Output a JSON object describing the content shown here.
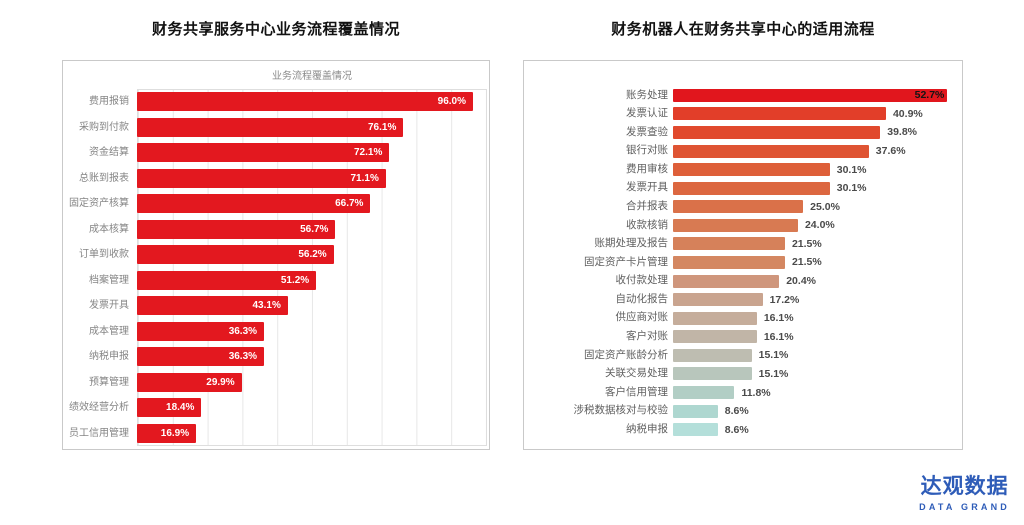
{
  "page": {
    "background": "#ffffff"
  },
  "logo": {
    "name_cn": "达观数据",
    "name_en": "DATA GRAND",
    "color": "#2e5cb8"
  },
  "chart_data": [
    {
      "type": "bar",
      "orientation": "horizontal",
      "title": "财务共享服务中心业务流程覆盖情况",
      "inner_title": "业务流程覆盖情况",
      "categories": [
        "费用报销",
        "采购到付款",
        "资金结算",
        "总账到报表",
        "固定资产核算",
        "成本核算",
        "订单到收款",
        "档案管理",
        "发票开具",
        "成本管理",
        "纳税申报",
        "预算管理",
        "绩效经营分析",
        "员工信用管理"
      ],
      "values": [
        96.0,
        76.1,
        72.1,
        71.1,
        66.7,
        56.7,
        56.2,
        51.2,
        43.1,
        36.3,
        36.3,
        29.9,
        18.4,
        16.9
      ],
      "value_labels": [
        "96.0%",
        "76.1%",
        "72.1%",
        "71.1%",
        "66.7%",
        "56.7%",
        "56.2%",
        "51.2%",
        "43.1%",
        "36.3%",
        "36.3%",
        "29.9%",
        "18.4%",
        "16.9%"
      ],
      "bar_color": "#e3181f",
      "value_label_position": "inside",
      "xlim": [
        0,
        100
      ],
      "grid": true,
      "grid_step_percent": 10
    },
    {
      "type": "bar",
      "orientation": "horizontal",
      "title": "财务机器人在财务共享中心的适用流程",
      "categories": [
        "账务处理",
        "发票认证",
        "发票查验",
        "银行对账",
        "费用审核",
        "发票开具",
        "合并报表",
        "收款核销",
        "账期处理及报告",
        "固定资产卡片管理",
        "收付款处理",
        "自动化报告",
        "供应商对账",
        "客户对账",
        "固定资产账龄分析",
        "关联交易处理",
        "客户信用管理",
        "涉税数据核对与校验",
        "纳税申报"
      ],
      "values": [
        52.7,
        40.9,
        39.8,
        37.6,
        30.1,
        30.1,
        25.0,
        24.0,
        21.5,
        21.5,
        20.4,
        17.2,
        16.1,
        16.1,
        15.1,
        15.1,
        11.8,
        8.6,
        8.6
      ],
      "value_labels": [
        "52.7%",
        "40.9%",
        "39.8%",
        "37.6%",
        "30.1%",
        "30.1%",
        "25.0%",
        "24.0%",
        "21.5%",
        "21.5%",
        "20.4%",
        "17.2%",
        "16.1%",
        "16.1%",
        "15.1%",
        "15.1%",
        "11.8%",
        "8.6%",
        "8.6%"
      ],
      "bar_colors": [
        "#e1161d",
        "#e23e29",
        "#e1492d",
        "#df5433",
        "#de5f39",
        "#dc6740",
        "#da7149",
        "#d87a52",
        "#d6815a",
        "#d48761",
        "#cf967c",
        "#c9a48f",
        "#c5ad9b",
        "#c1b5a7",
        "#bebdb1",
        "#b8c6bc",
        "#b2cec5",
        "#aed7d0",
        "#b4dfda"
      ],
      "value_label_position": "outside",
      "label_inside_indices": [
        0
      ],
      "xlim": [
        0,
        55.5
      ],
      "grid": false
    }
  ]
}
